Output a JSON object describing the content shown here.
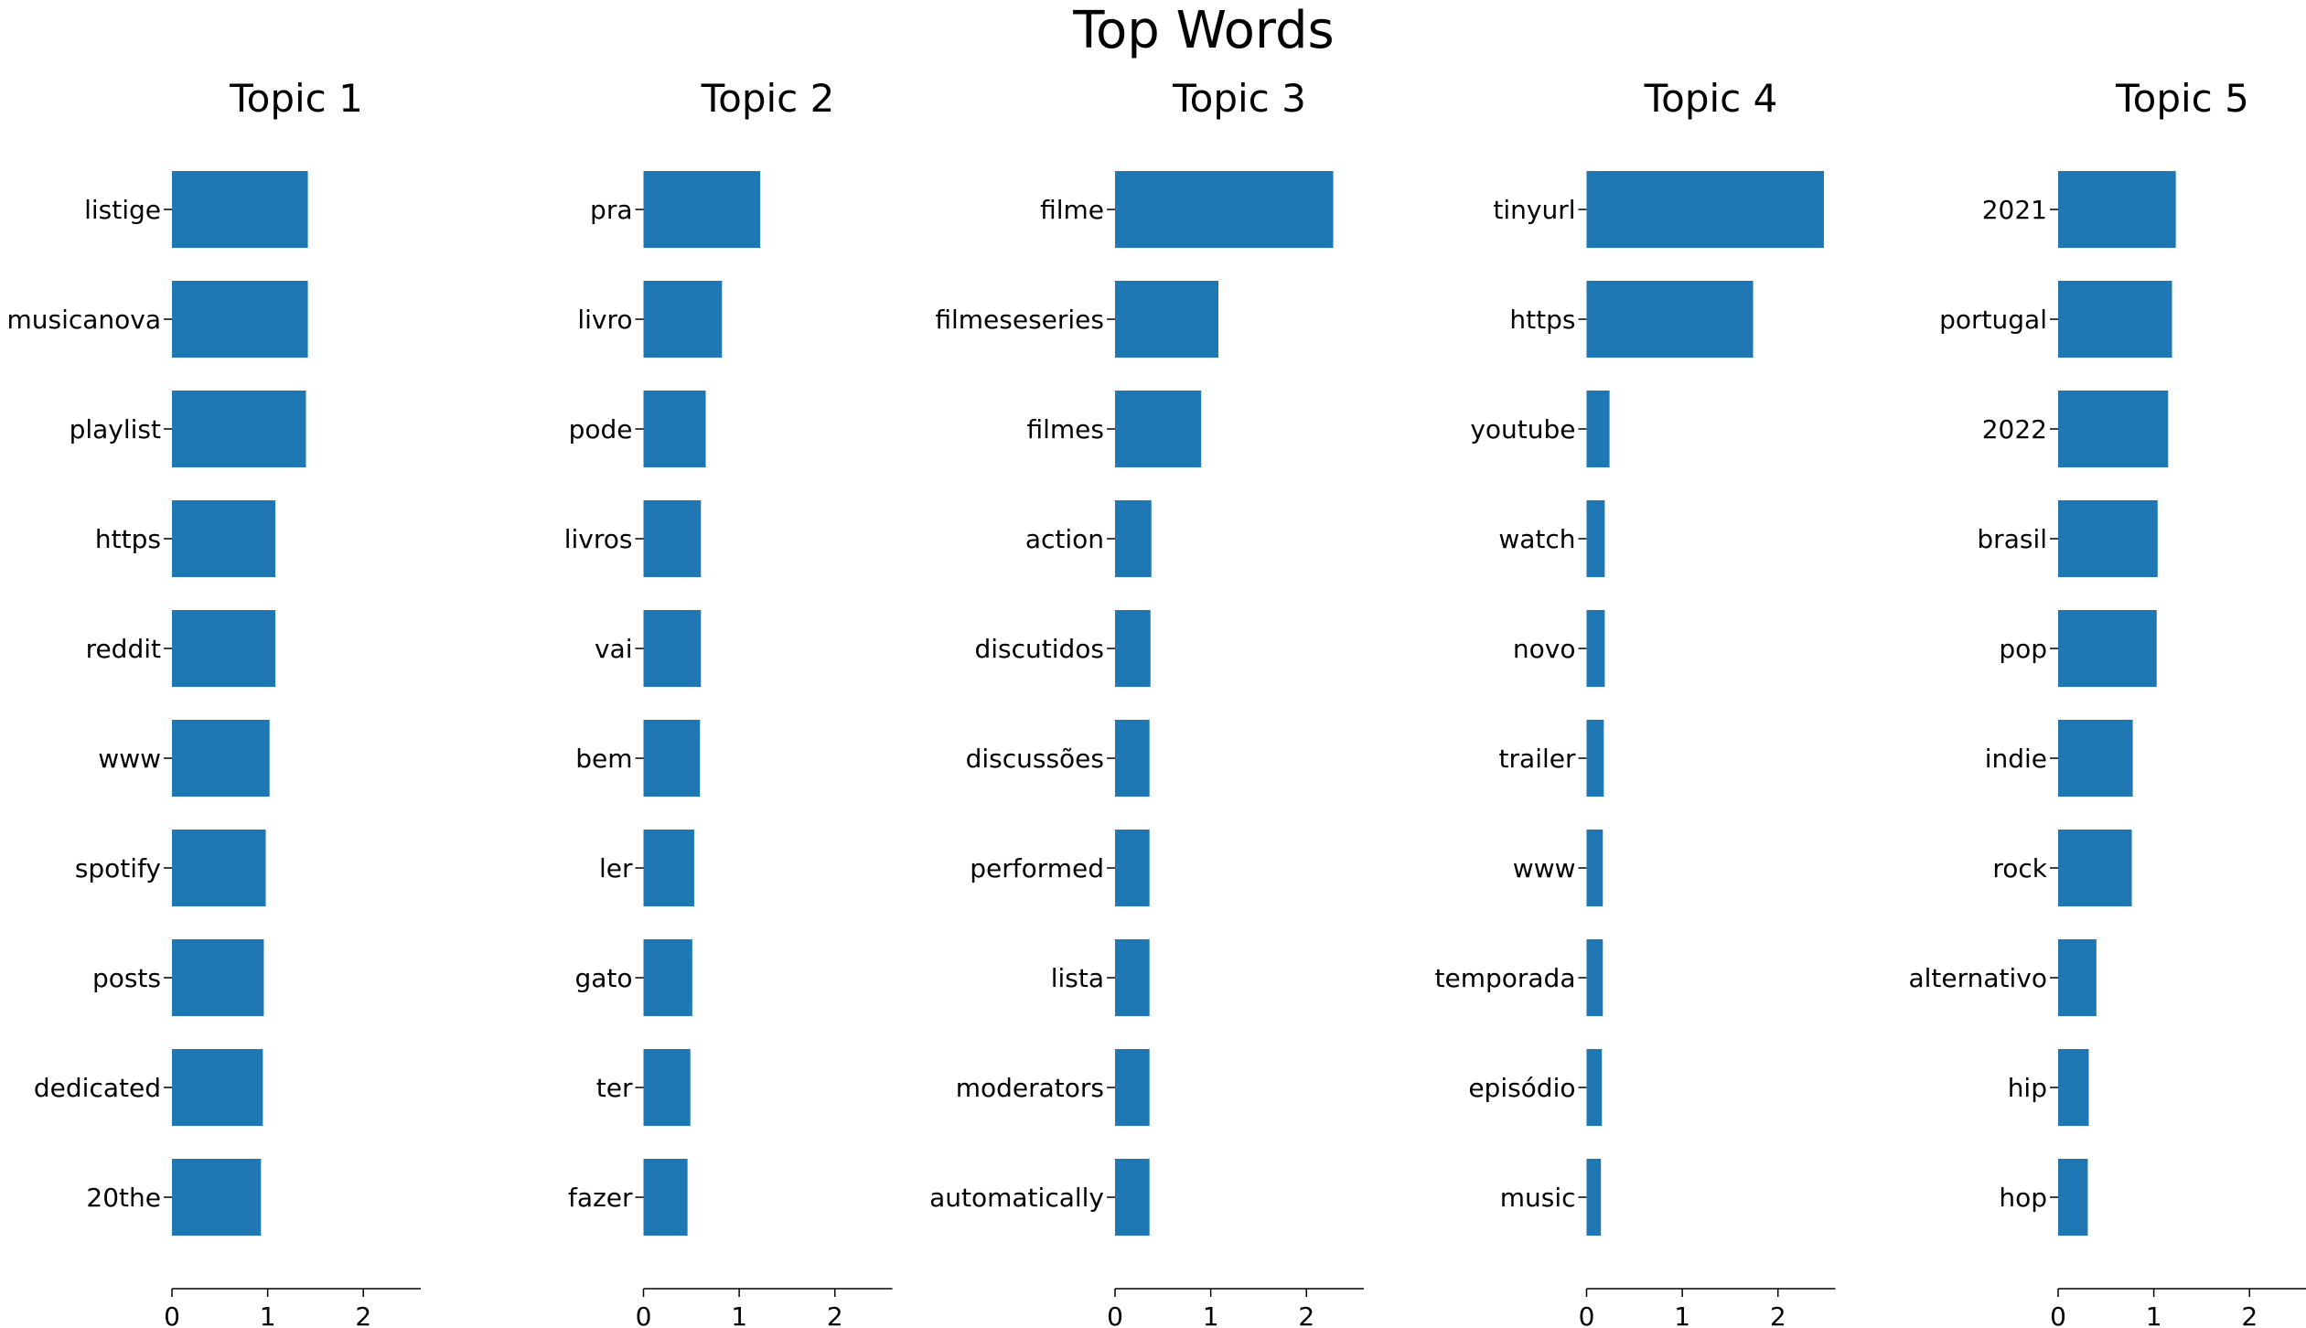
{
  "title": "Top Words",
  "bar_color": "#1f77b4",
  "chart_data": [
    {
      "type": "bar",
      "orientation": "horizontal",
      "title": "Topic 1",
      "categories": [
        "listige",
        "musicanova",
        "playlist",
        "https",
        "reddit",
        "www",
        "spotify",
        "posts",
        "dedicated",
        "20the"
      ],
      "values": [
        1.42,
        1.42,
        1.4,
        1.08,
        1.08,
        1.02,
        0.98,
        0.96,
        0.95,
        0.93
      ],
      "xlim": [
        0,
        2.6
      ],
      "xticks": [
        0,
        1,
        2
      ]
    },
    {
      "type": "bar",
      "orientation": "horizontal",
      "title": "Topic 2",
      "categories": [
        "pra",
        "livro",
        "pode",
        "livros",
        "vai",
        "bem",
        "ler",
        "gato",
        "ter",
        "fazer"
      ],
      "values": [
        1.22,
        0.82,
        0.65,
        0.6,
        0.6,
        0.59,
        0.53,
        0.51,
        0.49,
        0.46
      ],
      "xlim": [
        0,
        2.6
      ],
      "xticks": [
        0,
        1,
        2
      ]
    },
    {
      "type": "bar",
      "orientation": "horizontal",
      "title": "Topic 3",
      "categories": [
        "filme",
        "filmeseseries",
        "filmes",
        "action",
        "discutidos",
        "discussões",
        "performed",
        "lista",
        "moderators",
        "automatically"
      ],
      "values": [
        2.28,
        1.08,
        0.9,
        0.38,
        0.37,
        0.36,
        0.36,
        0.36,
        0.36,
        0.36
      ],
      "xlim": [
        0,
        2.6
      ],
      "xticks": [
        0,
        1,
        2
      ]
    },
    {
      "type": "bar",
      "orientation": "horizontal",
      "title": "Topic 4",
      "categories": [
        "tinyurl",
        "https",
        "youtube",
        "watch",
        "novo",
        "trailer",
        "www",
        "temporada",
        "episódio",
        "music"
      ],
      "values": [
        2.48,
        1.74,
        0.24,
        0.19,
        0.19,
        0.18,
        0.17,
        0.17,
        0.16,
        0.15
      ],
      "xlim": [
        0,
        2.6
      ],
      "xticks": [
        0,
        1,
        2
      ]
    },
    {
      "type": "bar",
      "orientation": "horizontal",
      "title": "Topic 5",
      "categories": [
        "2021",
        "portugal",
        "2022",
        "brasil",
        "pop",
        "indie",
        "rock",
        "alternativo",
        "hip",
        "hop"
      ],
      "values": [
        1.23,
        1.19,
        1.15,
        1.04,
        1.03,
        0.78,
        0.77,
        0.4,
        0.32,
        0.31
      ],
      "xlim": [
        0,
        2.6
      ],
      "xticks": [
        0,
        1,
        2
      ]
    }
  ]
}
